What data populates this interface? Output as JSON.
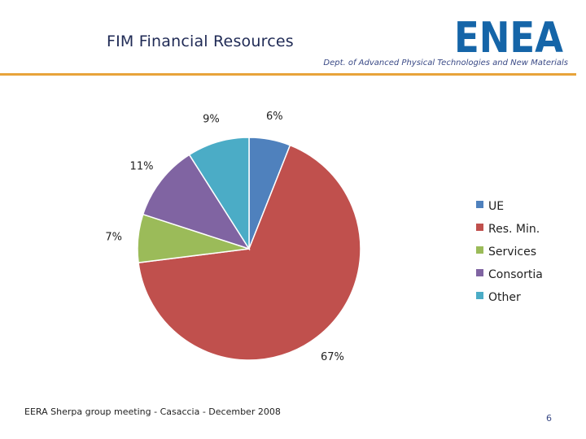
{
  "header": {
    "title": "FIM Financial Resources",
    "department": "Dept. of Advanced Physical Technologies and New Materials",
    "logo_text": "ENEA",
    "logo_color": "#1565a8",
    "rule_color": "#e8a33a"
  },
  "footer": {
    "text": "EERA Sherpa group meeting - Casaccia - December 2008",
    "page_number": "6"
  },
  "chart_data": {
    "type": "pie",
    "legend_position": "right",
    "slices": [
      {
        "name": "UE",
        "value": 6,
        "label": "6%",
        "color": "#4f81bd"
      },
      {
        "name": "Res. Min.",
        "value": 67,
        "label": "67%",
        "color": "#c0504d"
      },
      {
        "name": "Services",
        "value": 7,
        "label": "7%",
        "color": "#9bbb59"
      },
      {
        "name": "Consortia",
        "value": 11,
        "label": "11%",
        "color": "#8064a2"
      },
      {
        "name": "Other",
        "value": 9,
        "label": "9%",
        "color": "#4bacc6"
      }
    ]
  }
}
